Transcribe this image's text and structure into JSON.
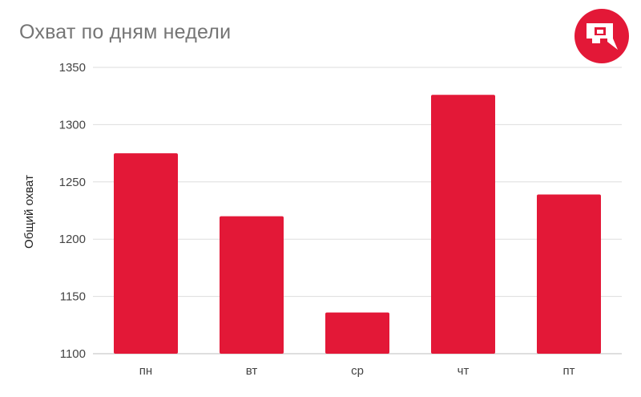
{
  "chart_data": {
    "type": "bar",
    "title": "Охват по дням недели",
    "xlabel": "",
    "ylabel": "Общий охват",
    "categories": [
      "пн",
      "вт",
      "ср",
      "чт",
      "пт"
    ],
    "values": [
      1275,
      1220,
      1136,
      1326,
      1239
    ],
    "ylim": [
      1100,
      1350
    ],
    "yticks": [
      1100,
      1150,
      1200,
      1250,
      1300,
      1350
    ],
    "grid": true,
    "colors": {
      "bar": "#e31837",
      "grid": "#dddddd",
      "axis": "#bdbdbd"
    }
  },
  "logo": {
    "icon": "brand-logo-icon",
    "color": "#e31837"
  }
}
